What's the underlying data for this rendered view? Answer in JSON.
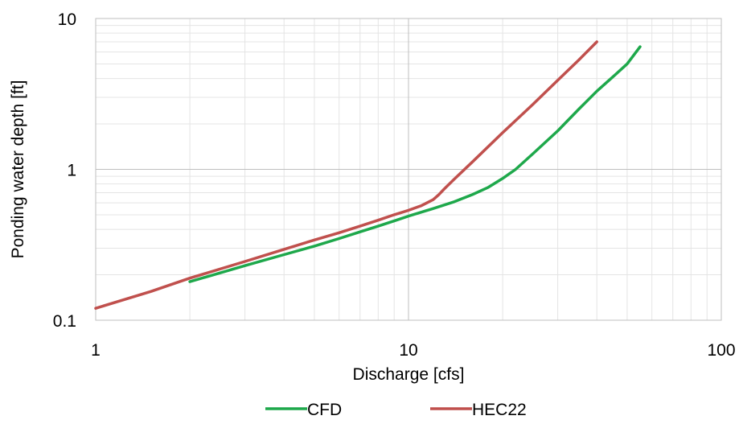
{
  "chart_data": {
    "type": "line",
    "title": "",
    "xlabel": "Discharge [cfs]",
    "ylabel": "Ponding water depth [ft]",
    "x_scale": "log",
    "y_scale": "log",
    "xlim": [
      1,
      100
    ],
    "ylim": [
      0.1,
      10
    ],
    "x_ticks": [
      {
        "value": 1,
        "label": "1"
      },
      {
        "value": 10,
        "label": "10"
      },
      {
        "value": 100,
        "label": "100"
      }
    ],
    "y_ticks": [
      {
        "value": 0.1,
        "label": "0.1"
      },
      {
        "value": 1,
        "label": "1"
      },
      {
        "value": 10,
        "label": "10"
      }
    ],
    "grid": true,
    "legend_position": "bottom-center",
    "series": [
      {
        "name": "CFD",
        "color": "#1ea84b",
        "x": [
          2,
          3,
          4,
          5,
          6,
          7,
          8,
          9,
          10,
          12,
          14,
          16,
          18,
          20,
          22,
          25,
          30,
          35,
          40,
          45,
          50,
          55
        ],
        "y": [
          0.18,
          0.23,
          0.272,
          0.31,
          0.348,
          0.385,
          0.42,
          0.455,
          0.49,
          0.55,
          0.61,
          0.68,
          0.76,
          0.87,
          1.0,
          1.27,
          1.8,
          2.5,
          3.3,
          4.1,
          5.0,
          6.5
        ]
      },
      {
        "name": "HEC22",
        "color": "#c0504d",
        "x": [
          1,
          1.5,
          2,
          3,
          4,
          5,
          6,
          7,
          8,
          9,
          10,
          11,
          12,
          12.5,
          13,
          14,
          16,
          20,
          25,
          30,
          35,
          40
        ],
        "y": [
          0.12,
          0.155,
          0.19,
          0.245,
          0.295,
          0.34,
          0.38,
          0.42,
          0.46,
          0.5,
          0.535,
          0.575,
          0.63,
          0.68,
          0.74,
          0.86,
          1.12,
          1.75,
          2.7,
          3.9,
          5.3,
          7.0
        ]
      }
    ]
  }
}
